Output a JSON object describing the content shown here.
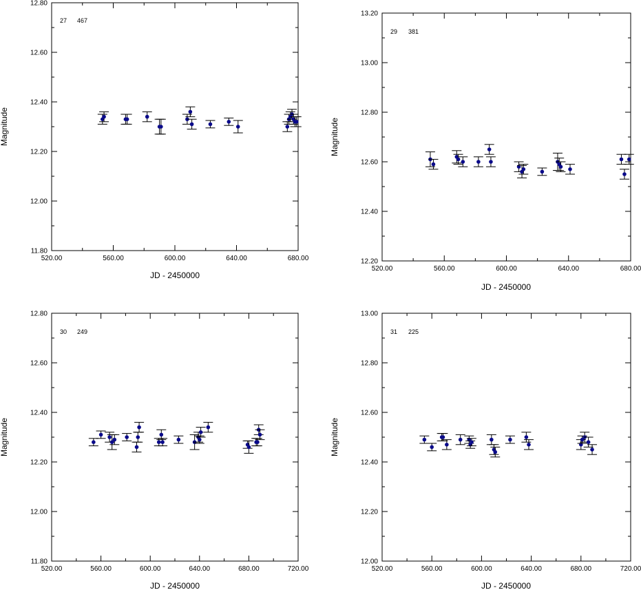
{
  "chart_data": [
    {
      "type": "scatter",
      "star_id": "27",
      "star_count": "467",
      "xlabel": "JD - 2450000",
      "ylabel": "Magnitude",
      "xlim": [
        520,
        680
      ],
      "ylim": [
        11.8,
        12.8
      ],
      "xticks": [
        "520.00",
        "560.00",
        "600.00",
        "640.00",
        "680.00"
      ],
      "yticks": [
        "11.80",
        "12.00",
        "12.20",
        "12.40",
        "12.60",
        "12.80"
      ],
      "point_color": "#0a0a8a",
      "points": [
        {
          "x": 553,
          "y": 12.33,
          "err": 0.02
        },
        {
          "x": 554,
          "y": 12.34,
          "err": 0.02
        },
        {
          "x": 568,
          "y": 12.33,
          "err": 0.02
        },
        {
          "x": 569,
          "y": 12.33,
          "err": 0.02
        },
        {
          "x": 582,
          "y": 12.34,
          "err": 0.02
        },
        {
          "x": 590,
          "y": 12.3,
          "err": 0.03
        },
        {
          "x": 591,
          "y": 12.3,
          "err": 0.03
        },
        {
          "x": 608,
          "y": 12.33,
          "err": 0.02
        },
        {
          "x": 610,
          "y": 12.36,
          "err": 0.02
        },
        {
          "x": 611,
          "y": 12.31,
          "err": 0.02
        },
        {
          "x": 623,
          "y": 12.31,
          "err": 0.015
        },
        {
          "x": 635,
          "y": 12.32,
          "err": 0.015
        },
        {
          "x": 641,
          "y": 12.3,
          "err": 0.025
        },
        {
          "x": 673,
          "y": 12.3,
          "err": 0.02
        },
        {
          "x": 674,
          "y": 12.33,
          "err": 0.02
        },
        {
          "x": 675,
          "y": 12.34,
          "err": 0.02
        },
        {
          "x": 676,
          "y": 12.35,
          "err": 0.02
        },
        {
          "x": 677,
          "y": 12.33,
          "err": 0.02
        },
        {
          "x": 678,
          "y": 12.32,
          "err": 0.02
        },
        {
          "x": 679,
          "y": 12.32,
          "err": 0.02
        }
      ]
    },
    {
      "type": "scatter",
      "star_id": "29",
      "star_count": "381",
      "xlabel": "JD - 2450000",
      "ylabel": "Magnitude",
      "xlim": [
        520,
        680
      ],
      "ylim": [
        12.2,
        13.2
      ],
      "xticks": [
        "520.00",
        "560.00",
        "600.00",
        "640.00",
        "680.00"
      ],
      "yticks": [
        "12.20",
        "12.40",
        "12.60",
        "12.80",
        "13.00",
        "13.20"
      ],
      "point_color": "#0a0a8a",
      "points": [
        {
          "x": 551,
          "y": 12.61,
          "err": 0.03
        },
        {
          "x": 553,
          "y": 12.59,
          "err": 0.02
        },
        {
          "x": 568,
          "y": 12.62,
          "err": 0.025
        },
        {
          "x": 569,
          "y": 12.61,
          "err": 0.02
        },
        {
          "x": 572,
          "y": 12.6,
          "err": 0.02
        },
        {
          "x": 582,
          "y": 12.6,
          "err": 0.02
        },
        {
          "x": 589,
          "y": 12.65,
          "err": 0.02
        },
        {
          "x": 590,
          "y": 12.6,
          "err": 0.02
        },
        {
          "x": 608,
          "y": 12.58,
          "err": 0.02
        },
        {
          "x": 610,
          "y": 12.56,
          "err": 0.025
        },
        {
          "x": 611,
          "y": 12.57,
          "err": 0.02
        },
        {
          "x": 623,
          "y": 12.56,
          "err": 0.015
        },
        {
          "x": 633,
          "y": 12.6,
          "err": 0.035
        },
        {
          "x": 634,
          "y": 12.59,
          "err": 0.025
        },
        {
          "x": 635,
          "y": 12.58,
          "err": 0.02
        },
        {
          "x": 641,
          "y": 12.57,
          "err": 0.02
        },
        {
          "x": 674,
          "y": 12.61,
          "err": 0.02
        },
        {
          "x": 676,
          "y": 12.55,
          "err": 0.02
        },
        {
          "x": 679,
          "y": 12.61,
          "err": 0.02
        }
      ]
    },
    {
      "type": "scatter",
      "star_id": "30",
      "star_count": "249",
      "xlabel": "JD - 2450000",
      "ylabel": "Magnitude",
      "xlim": [
        520,
        720
      ],
      "ylim": [
        11.8,
        12.8
      ],
      "xticks": [
        "520.00",
        "560.00",
        "600.00",
        "640.00",
        "680.00",
        "720.00"
      ],
      "yticks": [
        "11.80",
        "12.00",
        "12.20",
        "12.40",
        "12.60",
        "12.80"
      ],
      "point_color": "#0a0a8a",
      "points": [
        {
          "x": 554,
          "y": 12.28,
          "err": 0.015
        },
        {
          "x": 560,
          "y": 12.31,
          "err": 0.015
        },
        {
          "x": 567,
          "y": 12.3,
          "err": 0.02
        },
        {
          "x": 569,
          "y": 12.28,
          "err": 0.03
        },
        {
          "x": 571,
          "y": 12.29,
          "err": 0.02
        },
        {
          "x": 581,
          "y": 12.3,
          "err": 0.015
        },
        {
          "x": 589,
          "y": 12.26,
          "err": 0.02
        },
        {
          "x": 590,
          "y": 12.3,
          "err": 0.02
        },
        {
          "x": 591,
          "y": 12.34,
          "err": 0.02
        },
        {
          "x": 607,
          "y": 12.28,
          "err": 0.015
        },
        {
          "x": 609,
          "y": 12.31,
          "err": 0.02
        },
        {
          "x": 610,
          "y": 12.28,
          "err": 0.015
        },
        {
          "x": 623,
          "y": 12.29,
          "err": 0.015
        },
        {
          "x": 636,
          "y": 12.28,
          "err": 0.03
        },
        {
          "x": 639,
          "y": 12.3,
          "err": 0.02
        },
        {
          "x": 640,
          "y": 12.29,
          "err": 0.015
        },
        {
          "x": 641,
          "y": 12.32,
          "err": 0.02
        },
        {
          "x": 647,
          "y": 12.34,
          "err": 0.02
        },
        {
          "x": 679,
          "y": 12.27,
          "err": 0.015
        },
        {
          "x": 680,
          "y": 12.26,
          "err": 0.025
        },
        {
          "x": 686,
          "y": 12.28,
          "err": 0.015
        },
        {
          "x": 687,
          "y": 12.28,
          "err": 0.015
        },
        {
          "x": 688,
          "y": 12.33,
          "err": 0.02
        },
        {
          "x": 689,
          "y": 12.31,
          "err": 0.02
        }
      ]
    },
    {
      "type": "scatter",
      "star_id": "31",
      "star_count": "225",
      "xlabel": "JD - 2450000",
      "ylabel": "Magnitude",
      "xlim": [
        520,
        720
      ],
      "ylim": [
        12.0,
        13.0
      ],
      "xticks": [
        "520.00",
        "560.00",
        "600.00",
        "640.00",
        "680.00",
        "720.00"
      ],
      "yticks": [
        "12.00",
        "12.20",
        "12.40",
        "12.60",
        "12.80",
        "13.00"
      ],
      "point_color": "#0a0a8a",
      "points": [
        {
          "x": 554,
          "y": 12.49,
          "err": 0.015
        },
        {
          "x": 560,
          "y": 12.46,
          "err": 0.015
        },
        {
          "x": 568,
          "y": 12.5,
          "err": 0.015
        },
        {
          "x": 569,
          "y": 12.5,
          "err": 0.015
        },
        {
          "x": 572,
          "y": 12.47,
          "err": 0.02
        },
        {
          "x": 583,
          "y": 12.49,
          "err": 0.02
        },
        {
          "x": 590,
          "y": 12.49,
          "err": 0.015
        },
        {
          "x": 591,
          "y": 12.47,
          "err": 0.015
        },
        {
          "x": 592,
          "y": 12.48,
          "err": 0.015
        },
        {
          "x": 608,
          "y": 12.49,
          "err": 0.02
        },
        {
          "x": 610,
          "y": 12.45,
          "err": 0.02
        },
        {
          "x": 611,
          "y": 12.44,
          "err": 0.02
        },
        {
          "x": 623,
          "y": 12.49,
          "err": 0.015
        },
        {
          "x": 636,
          "y": 12.5,
          "err": 0.02
        },
        {
          "x": 638,
          "y": 12.47,
          "err": 0.02
        },
        {
          "x": 680,
          "y": 12.47,
          "err": 0.02
        },
        {
          "x": 681,
          "y": 12.49,
          "err": 0.015
        },
        {
          "x": 683,
          "y": 12.5,
          "err": 0.02
        },
        {
          "x": 686,
          "y": 12.48,
          "err": 0.02
        },
        {
          "x": 689,
          "y": 12.45,
          "err": 0.02
        }
      ]
    }
  ]
}
